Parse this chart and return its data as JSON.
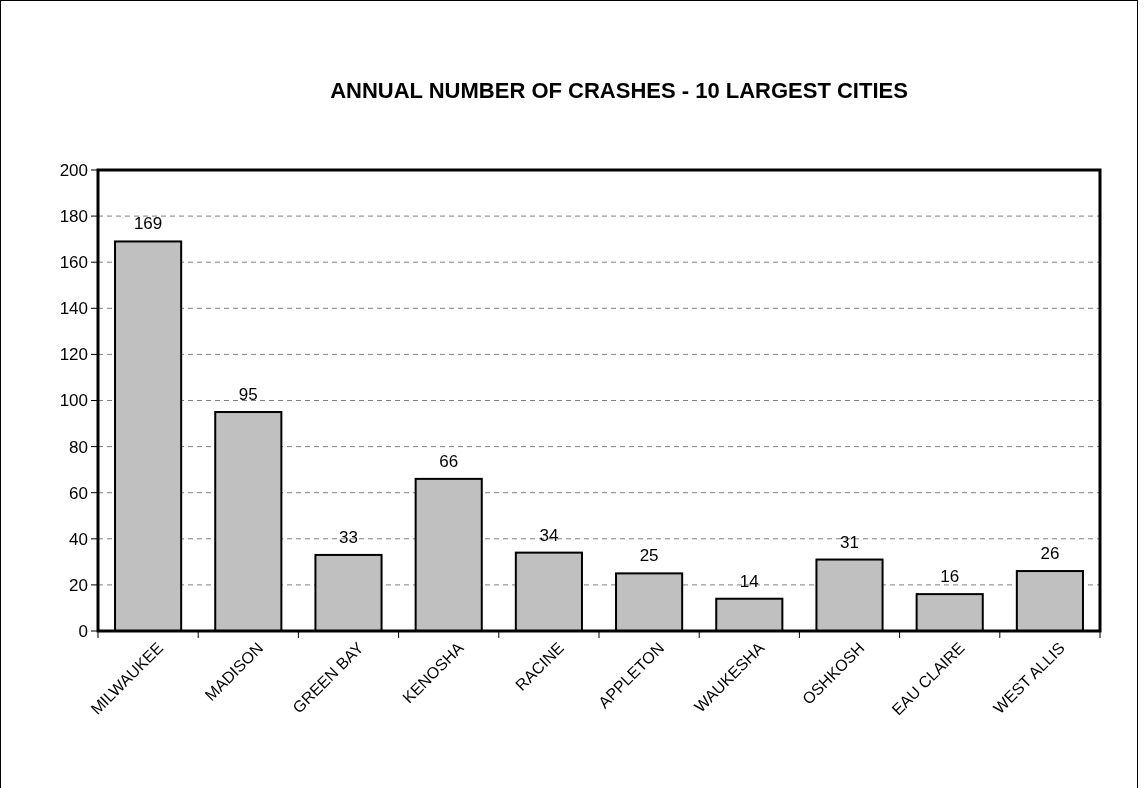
{
  "chart_data": {
    "type": "bar",
    "title": "ANNUAL NUMBER OF CRASHES - 10 LARGEST CITIES",
    "categories": [
      "MILWAUKEE",
      "MADISON",
      "GREEN BAY",
      "KENOSHA",
      "RACINE",
      "APPLETON",
      "WAUKESHA",
      "OSHKOSH",
      "EAU CLAIRE",
      "WEST ALLIS"
    ],
    "values": [
      169,
      95,
      33,
      66,
      34,
      25,
      14,
      31,
      16,
      26
    ],
    "color": "#c0c0c0",
    "ylim": [
      0,
      200
    ],
    "yticks": [
      0,
      20,
      40,
      60,
      80,
      100,
      120,
      140,
      160,
      180,
      200
    ],
    "grid": "y",
    "data_labels": true
  }
}
